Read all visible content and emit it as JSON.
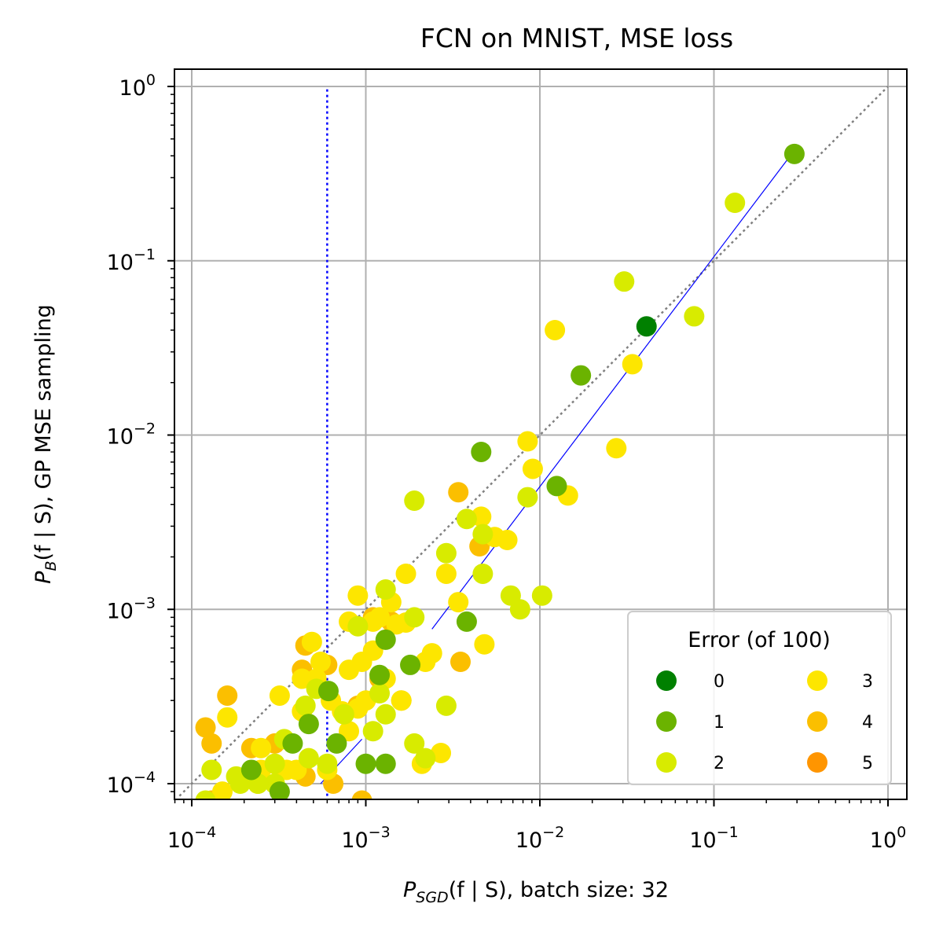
{
  "chart_data": {
    "type": "scatter",
    "title": "FCN on MNIST, MSE loss",
    "xlabel": {
      "var": "P",
      "sub": "SGD",
      "rest": "(f | S), batch size: 32"
    },
    "ylabel": {
      "var": "P",
      "sub": "B",
      "rest": "(f | S), GP MSE sampling"
    },
    "xscale": "log",
    "yscale": "log",
    "xlim": [
      8.5e-05,
      1.15
    ],
    "ylim": [
      8.5e-05,
      1.2
    ],
    "x_ticks": [
      {
        "value": 0.0001,
        "base": "10",
        "exp": "−4"
      },
      {
        "value": 0.001,
        "base": "10",
        "exp": "−3"
      },
      {
        "value": 0.01,
        "base": "10",
        "exp": "−2"
      },
      {
        "value": 0.1,
        "base": "10",
        "exp": "−1"
      },
      {
        "value": 1,
        "base": "10",
        "exp": "0"
      }
    ],
    "y_ticks": [
      {
        "value": 0.0001,
        "base": "10",
        "exp": "−4"
      },
      {
        "value": 0.001,
        "base": "10",
        "exp": "−3"
      },
      {
        "value": 0.01,
        "base": "10",
        "exp": "−2"
      },
      {
        "value": 0.1,
        "base": "10",
        "exp": "−1"
      },
      {
        "value": 1,
        "base": "10",
        "exp": "0"
      }
    ],
    "grid": true,
    "legend": {
      "title": "Error (of 100)",
      "placement": "lower-right",
      "columns": 2,
      "entries": [
        {
          "label": "0",
          "color": "#008000"
        },
        {
          "label": "1",
          "color": "#6bb300"
        },
        {
          "label": "2",
          "color": "#d8eb00"
        },
        {
          "label": "3",
          "color": "#fde600"
        },
        {
          "label": "4",
          "color": "#fbbf00"
        },
        {
          "label": "5",
          "color": "#ff9500"
        }
      ]
    },
    "reference_lines": [
      {
        "name": "identity",
        "style": "dotted",
        "color": "#808080",
        "x": [
          8.5e-05,
          1
        ],
        "y": [
          8.5e-05,
          1
        ]
      },
      {
        "name": "vertical-threshold",
        "style": "dotted",
        "color": "#0000ff",
        "x": [
          0.0006,
          0.0006
        ],
        "y": [
          8.5e-05,
          1
        ]
      },
      {
        "name": "fit-line-high",
        "style": "solid",
        "color": "#0000ff",
        "x": [
          0.0024,
          0.29
        ],
        "y": [
          0.00077,
          0.43
        ]
      },
      {
        "name": "fit-line-low",
        "style": "solid",
        "color": "#0000ff",
        "x": [
          0.00055,
          0.00095
        ],
        "y": [
          0.0001,
          0.00018
        ]
      }
    ],
    "series": [
      {
        "error": 4,
        "color": "#fbbf00",
        "points": [
          [
            0.00045,
            0.00062
          ],
          [
            0.0006,
            0.00048
          ],
          [
            0.0011,
            0.0009
          ],
          [
            0.0016,
            0.0003
          ],
          [
            0.0034,
            0.0047
          ],
          [
            0.00022,
            0.00016
          ],
          [
            0.00012,
            0.00021
          ],
          [
            0.00016,
            0.00032
          ],
          [
            0.0003,
            0.00013
          ],
          [
            0.00045,
            0.00011
          ],
          [
            0.0014,
            0.00085
          ],
          [
            0.00043,
            0.00045
          ],
          [
            0.00065,
            0.0001
          ],
          [
            0.00024,
            0.0001
          ],
          [
            0.0012,
            0.0004
          ],
          [
            0.0035,
            0.0005
          ],
          [
            0.0045,
            0.0023
          ],
          [
            0.00013,
            0.00017
          ],
          [
            0.00013,
            8e-05
          ],
          [
            0.00095,
            8e-05
          ],
          [
            0.0009,
            0.00028
          ],
          [
            0.0003,
            0.00017
          ]
        ]
      },
      {
        "error": 3,
        "color": "#fde600",
        "points": [
          [
            0.0122,
            0.04
          ],
          [
            0.0034,
            0.0011
          ],
          [
            0.0022,
            0.0005
          ],
          [
            0.0017,
            0.0016
          ],
          [
            0.0009,
            0.0012
          ],
          [
            0.00043,
            0.0004
          ],
          [
            0.00049,
            0.00065
          ],
          [
            0.00052,
            0.0004
          ],
          [
            0.00063,
            0.0003
          ],
          [
            0.0008,
            0.00045
          ],
          [
            0.00095,
            0.0005
          ],
          [
            0.0011,
            0.00085
          ],
          [
            0.0015,
            0.00082
          ],
          [
            0.0048,
            0.00063
          ],
          [
            0.0055,
            0.0026
          ],
          [
            0.0085,
            0.0092
          ],
          [
            0.0065,
            0.0025
          ],
          [
            0.0029,
            0.0016
          ],
          [
            0.0014,
            0.0011
          ],
          [
            0.0008,
            0.0002
          ],
          [
            0.0009,
            0.00027
          ],
          [
            0.00035,
            0.00012
          ],
          [
            0.0006,
            0.00012
          ],
          [
            0.00025,
            0.00012
          ],
          [
            0.00016,
            0.00024
          ],
          [
            0.00015,
            9e-05
          ],
          [
            0.00032,
            0.00032
          ],
          [
            0.00043,
            0.00026
          ],
          [
            0.0011,
            0.00058
          ],
          [
            0.0017,
            0.00084
          ],
          [
            0.0024,
            0.00056
          ],
          [
            0.0027,
            0.00015
          ],
          [
            0.0012,
            0.0009
          ],
          [
            0.001,
            0.0003
          ],
          [
            0.00073,
            0.00026
          ],
          [
            0.0016,
            0.0003
          ],
          [
            0.0046,
            0.0034
          ],
          [
            0.0275,
            0.0084
          ],
          [
            0.034,
            0.0255
          ],
          [
            0.0091,
            0.0064
          ],
          [
            0.0145,
            0.0045
          ],
          [
            0.0013,
            0.0004
          ],
          [
            0.0008,
            0.00085
          ],
          [
            0.0004,
            0.00012
          ],
          [
            0.0021,
            0.00013
          ],
          [
            0.00055,
            0.0005
          ],
          [
            0.0003,
            0.00013
          ],
          [
            0.00025,
            0.00016
          ]
        ]
      },
      {
        "error": 2,
        "color": "#d8eb00",
        "points": [
          [
            0.132,
            0.215
          ],
          [
            0.0305,
            0.076
          ],
          [
            0.077,
            0.048
          ],
          [
            0.0085,
            0.0044
          ],
          [
            0.0029,
            0.0021
          ],
          [
            0.0038,
            0.0033
          ],
          [
            0.0047,
            0.0016
          ],
          [
            0.0068,
            0.0012
          ],
          [
            0.0103,
            0.0012
          ],
          [
            0.0077,
            0.001
          ],
          [
            0.0047,
            0.0027
          ],
          [
            0.0019,
            0.0042
          ],
          [
            0.0013,
            0.0013
          ],
          [
            0.0019,
            0.0009
          ],
          [
            0.0009,
            0.0008
          ],
          [
            0.00052,
            0.00035
          ],
          [
            0.00045,
            0.00028
          ],
          [
            0.0003,
            0.00013
          ],
          [
            0.0012,
            0.00033
          ],
          [
            0.0013,
            0.00025
          ],
          [
            0.00075,
            0.00025
          ],
          [
            0.0011,
            0.0002
          ],
          [
            0.0003,
            0.0001
          ],
          [
            0.00018,
            0.00011
          ],
          [
            0.00013,
            0.00012
          ],
          [
            0.00034,
            0.00018
          ],
          [
            0.0022,
            0.00014
          ],
          [
            0.0029,
            0.00028
          ],
          [
            0.0019,
            0.00017
          ],
          [
            0.00024,
            0.0001
          ],
          [
            0.0006,
            0.00013
          ],
          [
            0.00047,
            0.00014
          ],
          [
            0.00019,
            0.0001
          ],
          [
            0.00012,
            8e-05
          ]
        ]
      },
      {
        "error": 1,
        "color": "#6bb300",
        "points": [
          [
            0.29,
            0.41
          ],
          [
            0.0172,
            0.022
          ],
          [
            0.0046,
            0.008
          ],
          [
            0.0125,
            0.0051
          ],
          [
            0.0038,
            0.00085
          ],
          [
            0.0013,
            0.00067
          ],
          [
            0.0018,
            0.00048
          ],
          [
            0.00061,
            0.00034
          ],
          [
            0.00047,
            0.00022
          ],
          [
            0.00038,
            0.00017
          ],
          [
            0.0012,
            0.00042
          ],
          [
            0.00068,
            0.00017
          ],
          [
            0.0013,
            0.00013
          ],
          [
            0.001,
            0.00013
          ],
          [
            0.00022,
            0.00012
          ],
          [
            0.00032,
            9e-05
          ]
        ]
      },
      {
        "error": 0,
        "color": "#008000",
        "points": [
          [
            0.041,
            0.042
          ]
        ]
      }
    ]
  }
}
